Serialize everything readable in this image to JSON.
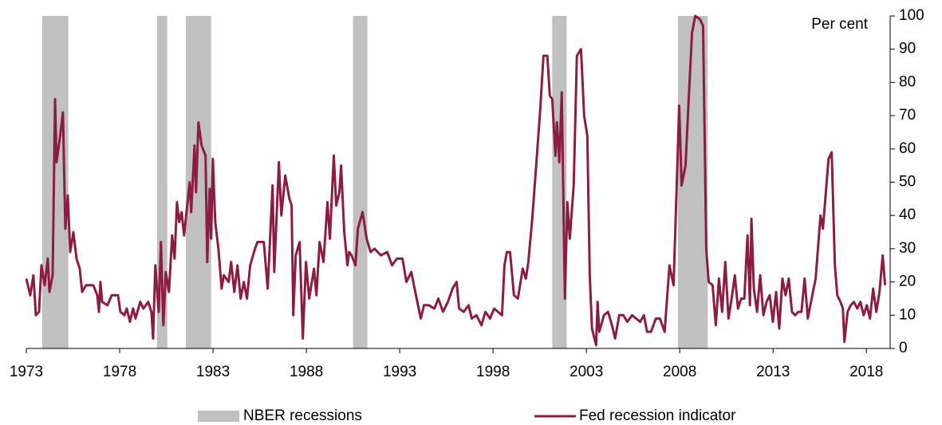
{
  "chart_data": {
    "type": "line",
    "y_label": "Per cent",
    "xlim": [
      1973,
      2019.1
    ],
    "xticks": [
      1973,
      1978,
      1983,
      1988,
      1993,
      1998,
      2003,
      2008,
      2013,
      2018
    ],
    "ylim": [
      0,
      100
    ],
    "yticks": [
      0,
      10,
      20,
      30,
      40,
      50,
      60,
      70,
      80,
      90,
      100
    ],
    "y_axis_side": "right",
    "grid": false,
    "legend": "bottom",
    "recessions": {
      "name": "NBER recessions",
      "color": "#c0c0c0",
      "spans": [
        [
          1973.85,
          1975.25
        ],
        [
          1980.0,
          1980.55
        ],
        [
          1981.54,
          1982.9
        ],
        [
          1990.5,
          1991.27
        ],
        [
          2001.17,
          2001.94
        ],
        [
          2007.9,
          2009.5
        ]
      ]
    },
    "series": [
      {
        "name": "Fed recession indicator",
        "color": "#8c1d40",
        "x": [
          1973.0,
          1973.21,
          1973.38,
          1973.51,
          1973.68,
          1973.81,
          1973.98,
          1974.15,
          1974.24,
          1974.41,
          1974.54,
          1974.62,
          1974.79,
          1974.96,
          1975.09,
          1975.22,
          1975.35,
          1975.52,
          1975.69,
          1975.86,
          1975.99,
          1976.2,
          1976.59,
          1976.8,
          1976.89,
          1976.97,
          1977.06,
          1977.35,
          1977.57,
          1977.91,
          1978.04,
          1978.25,
          1978.38,
          1978.55,
          1978.72,
          1978.85,
          1979.1,
          1979.27,
          1979.53,
          1979.7,
          1979.79,
          1979.91,
          1980.09,
          1980.21,
          1980.34,
          1980.47,
          1980.64,
          1980.81,
          1980.94,
          1981.07,
          1981.19,
          1981.32,
          1981.45,
          1981.75,
          1981.83,
          1982.01,
          1982.09,
          1982.22,
          1982.39,
          1982.6,
          1982.69,
          1982.82,
          1982.9,
          1982.99,
          1983.12,
          1983.29,
          1983.46,
          1983.58,
          1983.84,
          1983.97,
          1984.14,
          1984.31,
          1984.48,
          1984.65,
          1984.82,
          1984.99,
          1985.25,
          1985.38,
          1985.72,
          1985.93,
          1986.19,
          1986.28,
          1986.53,
          1986.66,
          1986.87,
          1987.09,
          1987.21,
          1987.3,
          1987.43,
          1987.64,
          1987.81,
          1987.98,
          1988.15,
          1988.41,
          1988.54,
          1988.71,
          1988.92,
          1989.13,
          1989.26,
          1989.47,
          1989.6,
          1989.77,
          1989.86,
          1990.03,
          1990.2,
          1990.29,
          1990.42,
          1990.63,
          1990.76,
          1991.01,
          1991.23,
          1991.44,
          1991.65,
          1991.99,
          1992.33,
          1992.59,
          1992.85,
          1993.15,
          1993.36,
          1993.62,
          1993.87,
          1994.13,
          1994.3,
          1994.56,
          1994.86,
          1995.07,
          1995.32,
          1995.58,
          1995.83,
          1996.05,
          1996.18,
          1996.43,
          1996.69,
          1996.86,
          1997.11,
          1997.38,
          1997.59,
          1997.84,
          1998.06,
          1998.48,
          1998.61,
          1998.74,
          1998.91,
          1999.12,
          1999.33,
          1999.59,
          1999.76,
          1999.89,
          2000.1,
          2000.31,
          2000.53,
          2000.7,
          2000.91,
          2001.04,
          2001.17,
          2001.34,
          2001.42,
          2001.55,
          2001.68,
          2001.85,
          2001.98,
          2002.11,
          2002.32,
          2002.49,
          2002.71,
          2002.88,
          2003.05,
          2003.18,
          2003.3,
          2003.52,
          2003.6,
          2003.69,
          2003.94,
          2004.16,
          2004.37,
          2004.54,
          2004.76,
          2004.98,
          2005.19,
          2005.45,
          2005.66,
          2005.88,
          2006.08,
          2006.25,
          2006.46,
          2006.72,
          2006.94,
          2007.19,
          2007.45,
          2007.67,
          2007.97,
          2008.1,
          2008.31,
          2008.48,
          2008.66,
          2008.83,
          2009.08,
          2009.25,
          2009.42,
          2009.55,
          2009.76,
          2009.93,
          2010.1,
          2010.27,
          2010.44,
          2010.61,
          2010.78,
          2010.95,
          2011.12,
          2011.29,
          2011.46,
          2011.63,
          2011.76,
          2011.84,
          2011.97,
          2012.14,
          2012.31,
          2012.48,
          2012.65,
          2012.82,
          2012.99,
          2013.16,
          2013.33,
          2013.5,
          2013.67,
          2013.84,
          2014.01,
          2014.18,
          2014.35,
          2014.52,
          2014.69,
          2014.86,
          2015.03,
          2015.28,
          2015.54,
          2015.67,
          2015.97,
          2016.14,
          2016.31,
          2016.44,
          2016.61,
          2016.74,
          2016.82,
          2016.99,
          2017.16,
          2017.33,
          2017.51,
          2017.68,
          2017.85,
          2018.02,
          2018.19,
          2018.36,
          2018.53,
          2018.7,
          2018.87,
          2019.0
        ],
        "values": [
          21,
          16,
          22,
          10,
          11,
          25,
          19,
          27,
          17,
          22,
          75,
          56,
          63,
          71,
          36,
          46,
          29,
          35,
          27,
          24,
          17,
          19,
          19,
          16,
          11,
          20,
          14,
          13,
          16,
          16,
          11,
          10,
          12,
          8,
          12,
          9,
          14,
          12,
          14,
          11,
          3,
          25,
          11,
          32,
          7,
          23,
          17,
          34,
          27,
          44,
          38,
          41,
          34,
          50,
          41,
          61,
          47,
          68,
          61,
          58,
          26,
          48,
          33,
          57,
          38,
          30,
          18,
          22,
          20,
          26,
          17,
          25,
          15,
          20,
          15,
          25,
          30,
          32,
          32,
          18,
          49,
          23,
          56,
          40,
          52,
          45,
          43,
          10,
          28,
          32,
          3,
          26,
          15,
          24,
          16,
          32,
          26,
          44,
          33,
          58,
          43,
          47,
          55,
          35,
          25,
          29,
          28,
          25,
          36,
          41,
          33,
          29,
          30,
          28,
          29,
          25,
          27,
          27,
          20,
          23,
          16,
          9,
          13,
          13,
          12,
          15,
          11,
          14,
          18,
          20,
          12,
          11,
          13,
          9,
          10,
          7,
          11,
          9,
          12,
          10,
          25,
          29,
          29,
          16,
          15,
          24,
          21,
          26,
          39,
          55,
          72,
          88,
          88,
          76,
          75,
          58,
          68,
          56,
          77,
          15,
          44,
          33,
          49,
          88,
          90,
          70,
          64,
          22,
          6,
          1,
          14,
          5,
          10,
          11,
          7,
          3,
          10,
          10,
          8,
          10,
          9,
          8,
          10,
          5,
          5,
          9,
          9,
          5,
          25,
          19,
          73,
          49,
          55,
          75,
          95,
          100,
          99,
          97,
          30,
          20,
          19,
          7,
          21,
          11,
          26,
          9,
          15,
          22,
          12,
          15,
          15,
          34,
          13,
          39,
          18,
          11,
          22,
          10,
          14,
          16,
          8,
          17,
          6,
          21,
          16,
          21,
          11,
          10,
          11,
          11,
          21,
          9,
          14,
          21,
          40,
          36,
          57,
          59,
          25,
          16,
          14,
          12,
          2,
          11,
          13,
          14,
          12,
          14,
          10,
          13,
          9,
          18,
          11,
          17,
          28,
          19
        ]
      }
    ]
  }
}
